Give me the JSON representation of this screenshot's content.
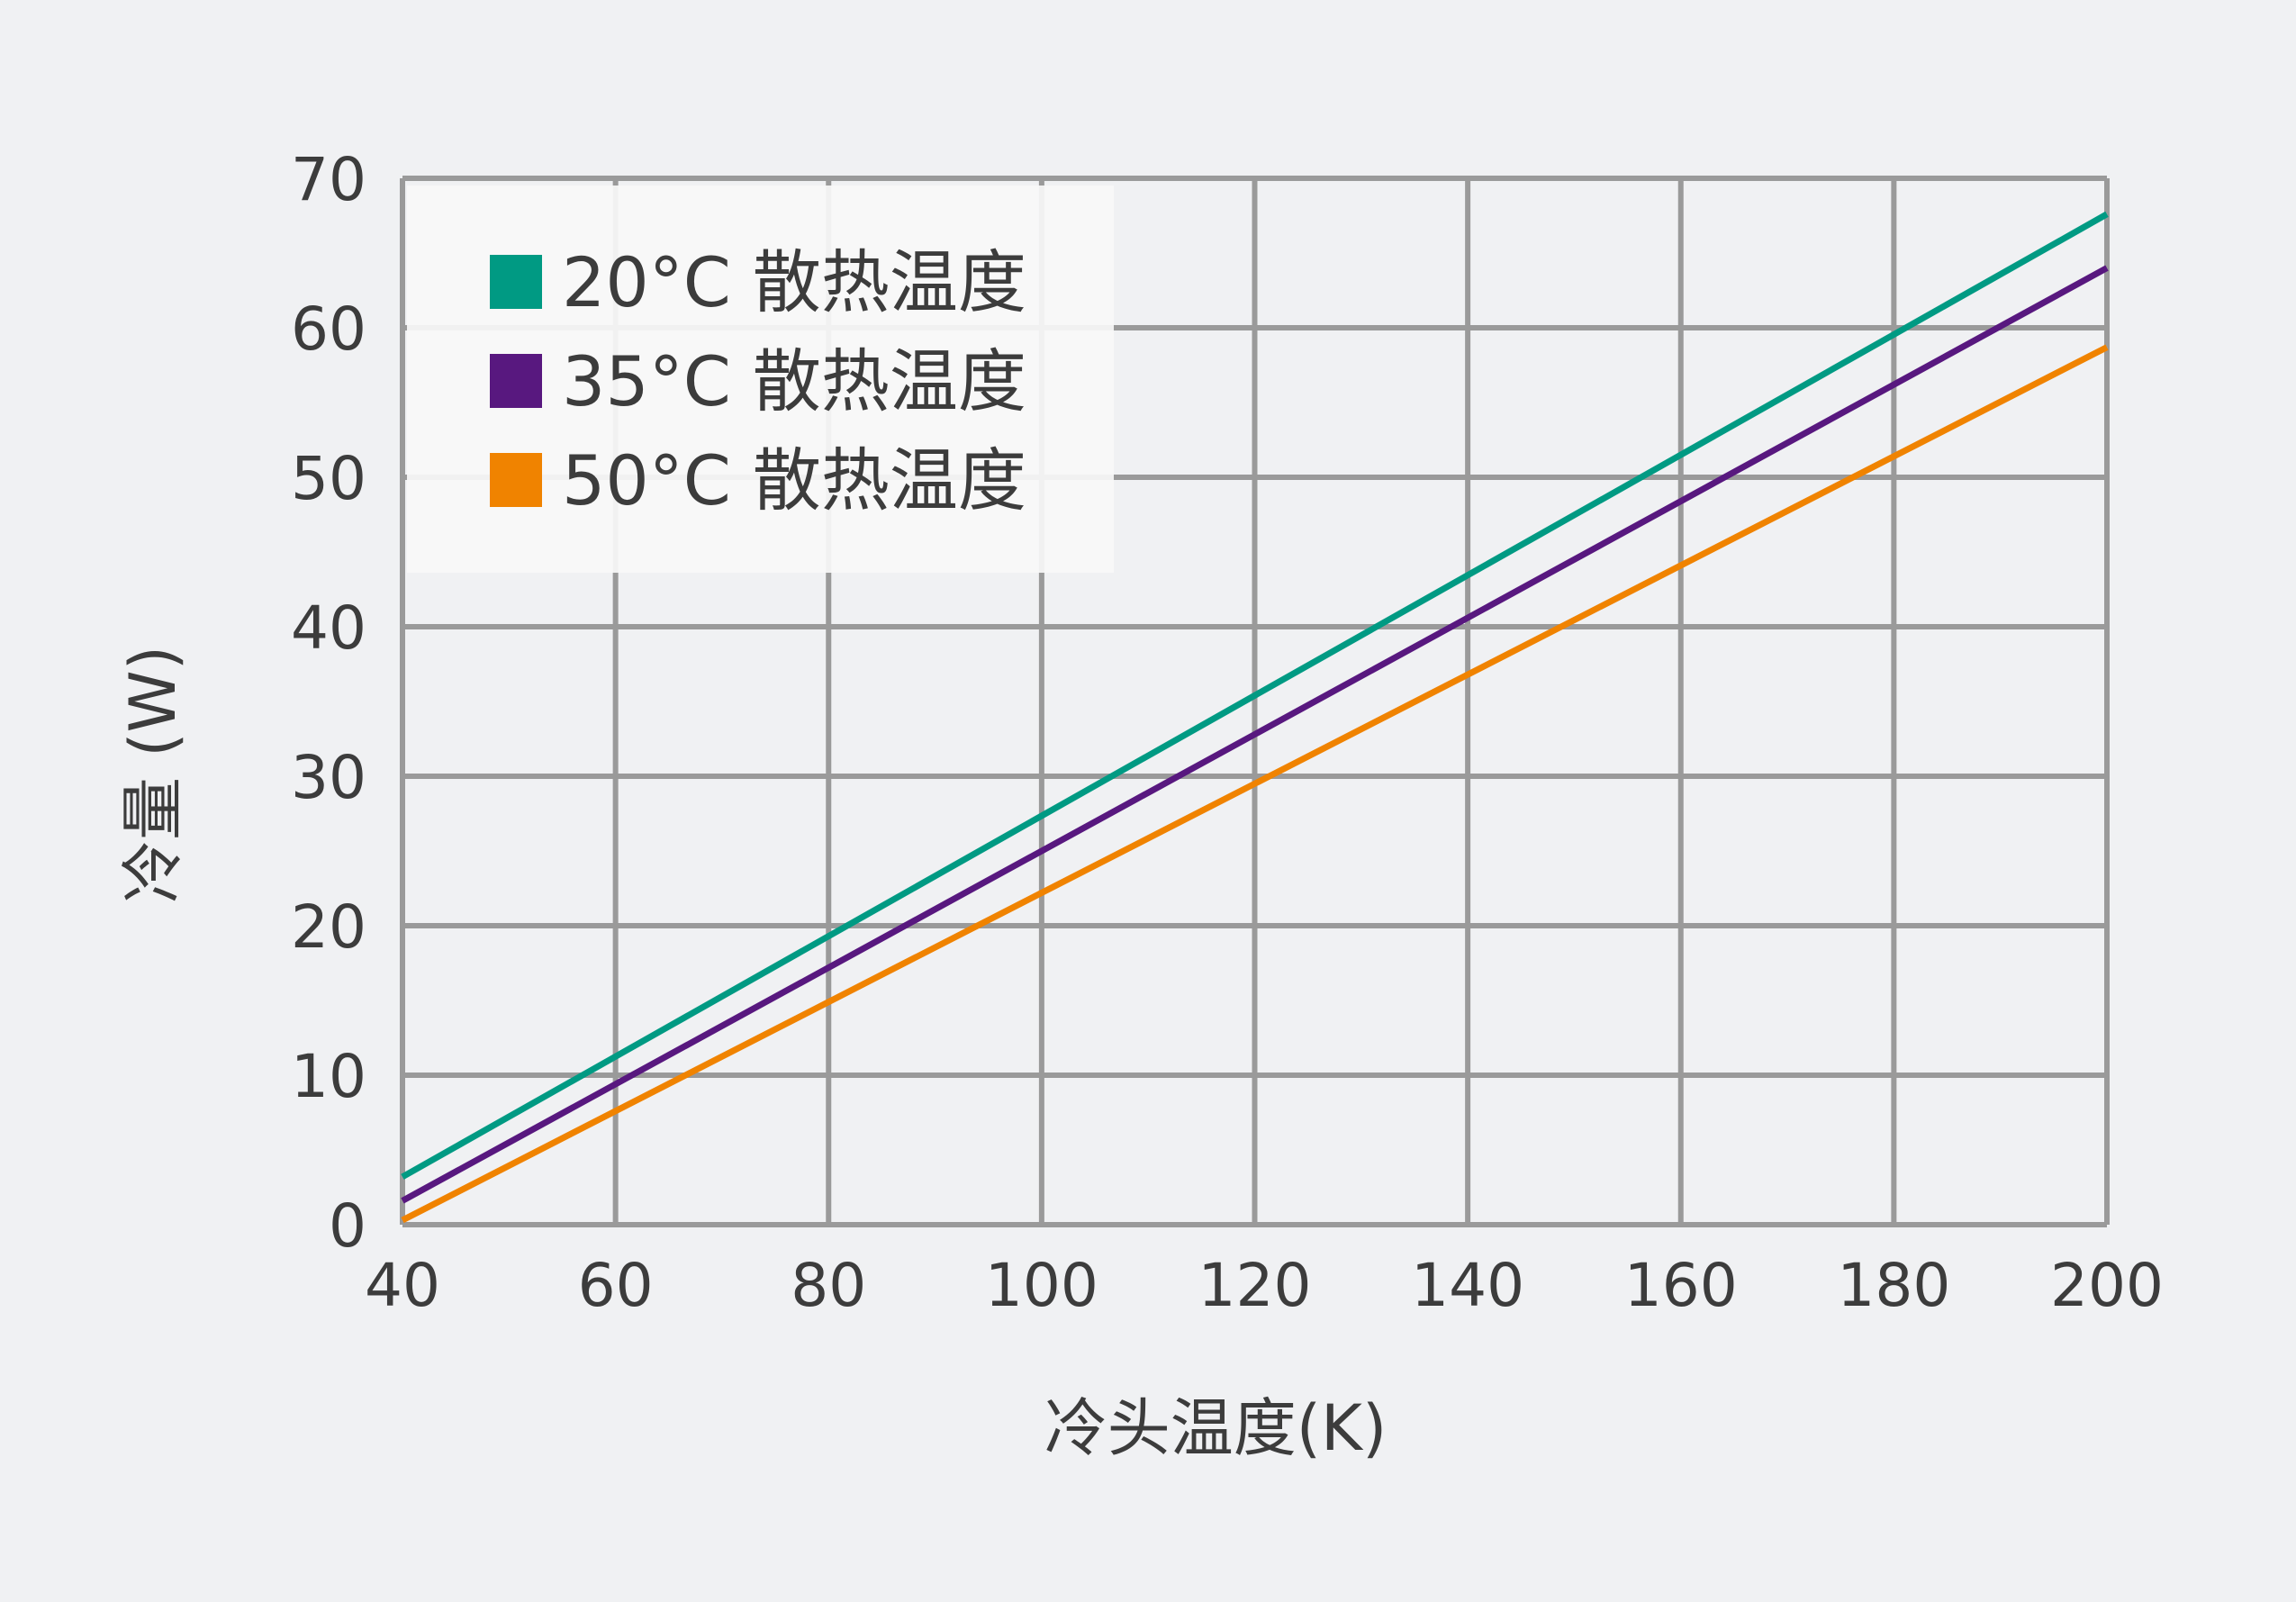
{
  "chart_data": {
    "type": "line",
    "xlabel": "冷头温度(K)",
    "ylabel": "冷量 (W)",
    "xlim": [
      40,
      200
    ],
    "ylim": [
      0,
      70
    ],
    "x_ticks": [
      "40",
      "60",
      "80",
      "100",
      "120",
      "140",
      "160",
      "180",
      "200"
    ],
    "y_ticks": [
      "0",
      "10",
      "20",
      "30",
      "40",
      "50",
      "60",
      "70"
    ],
    "grid": true,
    "legend_position": "top-left",
    "series": [
      {
        "name": "20°C 散热温度",
        "color": "#009a83",
        "x": [
          40,
          200
        ],
        "y": [
          3.2,
          67.6
        ]
      },
      {
        "name": "35°C 散热温度",
        "color": "#58187f",
        "x": [
          40,
          200
        ],
        "y": [
          1.6,
          64.0
        ]
      },
      {
        "name": "50°C 散热温度",
        "color": "#f08300",
        "x": [
          40,
          200
        ],
        "y": [
          0.3,
          58.7
        ]
      }
    ]
  }
}
